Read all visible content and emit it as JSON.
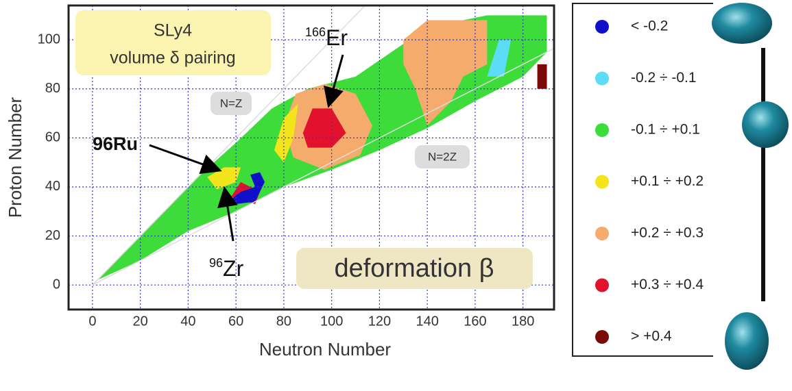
{
  "chart_data": {
    "type": "nuclide-map",
    "xlabel": "Neutron Number",
    "ylabel": "Proton Number",
    "xlim": [
      -10,
      193
    ],
    "ylim": [
      -10,
      114
    ],
    "xticks": [
      0,
      20,
      40,
      60,
      80,
      100,
      120,
      140,
      160,
      180
    ],
    "yticks": [
      0,
      20,
      40,
      60,
      80,
      100
    ],
    "grid": true,
    "annotations": {
      "model": "SLy4",
      "pairing": "volume δ pairing",
      "nz": "N=Z",
      "n2z": "N=2Z",
      "ru": "96Ru",
      "er": {
        "mass": "166",
        "symbol": "Er"
      },
      "zr": {
        "mass": "96",
        "symbol": "Zr"
      },
      "quantity": "deformation β"
    },
    "legend": [
      {
        "name": "< -0.2",
        "color": "#1010c8"
      },
      {
        "name": "-0.2 ÷ -0.1",
        "color": "#5cdcf5"
      },
      {
        "name": "-0.1 ÷ +0.1",
        "color": "#3ddc3a"
      },
      {
        "name": "+0.1 ÷ +0.2",
        "color": "#f3e41c"
      },
      {
        "name": "+0.2 ÷ +0.3",
        "color": "#f5ab6c"
      },
      {
        "name": "+0.3 ÷ +0.4",
        "color": "#e2122e"
      },
      {
        "name": "> +0.4",
        "color": "#7a0a0a"
      }
    ],
    "regions": [
      {
        "color": "#3ddc3a",
        "x": [
          2,
          20,
          40,
          60,
          80,
          100,
          120,
          140,
          160,
          180,
          190,
          190,
          165,
          140,
          125,
          110,
          90,
          75,
          60,
          45,
          30,
          15
        ],
        "y": [
          2,
          10,
          22,
          30,
          40,
          47,
          55,
          64,
          75,
          85,
          95,
          110,
          110,
          105,
          95,
          85,
          80,
          72,
          58,
          45,
          30,
          15
        ]
      },
      {
        "color": "#f5ab6c",
        "x": [
          130,
          140,
          165,
          165,
          155,
          150,
          140,
          135,
          130
        ],
        "y": [
          100,
          108,
          108,
          90,
          85,
          75,
          65,
          80,
          90
        ]
      },
      {
        "color": "#f5ab6c",
        "x": [
          80,
          85,
          97,
          110,
          117,
          112,
          97,
          84
        ],
        "y": [
          65,
          78,
          82,
          78,
          65,
          53,
          47,
          52
        ]
      },
      {
        "color": "#e2122e",
        "x": [
          88,
          92,
          100,
          106,
          100,
          90
        ],
        "y": [
          62,
          72,
          72,
          62,
          56,
          56
        ]
      },
      {
        "color": "#f3e41c",
        "x": [
          76,
          80,
          86,
          84,
          80
        ],
        "y": [
          55,
          68,
          74,
          60,
          50
        ]
      },
      {
        "color": "#f3e41c",
        "x": [
          48,
          55,
          62,
          60,
          52
        ],
        "y": [
          44,
          48,
          48,
          42,
          39
        ]
      },
      {
        "color": "#e2122e",
        "x": [
          58,
          62,
          70,
          68
        ],
        "y": [
          36,
          42,
          38,
          33
        ]
      },
      {
        "color": "#1010c8",
        "x": [
          58,
          62,
          68,
          66,
          70,
          72,
          68,
          60
        ],
        "y": [
          35,
          38,
          40,
          45,
          46,
          42,
          34,
          33
        ]
      },
      {
        "color": "#5cdcf5",
        "x": [
          165,
          170,
          175,
          172
        ],
        "y": [
          85,
          100,
          100,
          85
        ]
      },
      {
        "color": "#7a0a0a",
        "x": [
          186,
          190,
          190,
          186
        ],
        "y": [
          80,
          80,
          90,
          90
        ]
      }
    ]
  }
}
